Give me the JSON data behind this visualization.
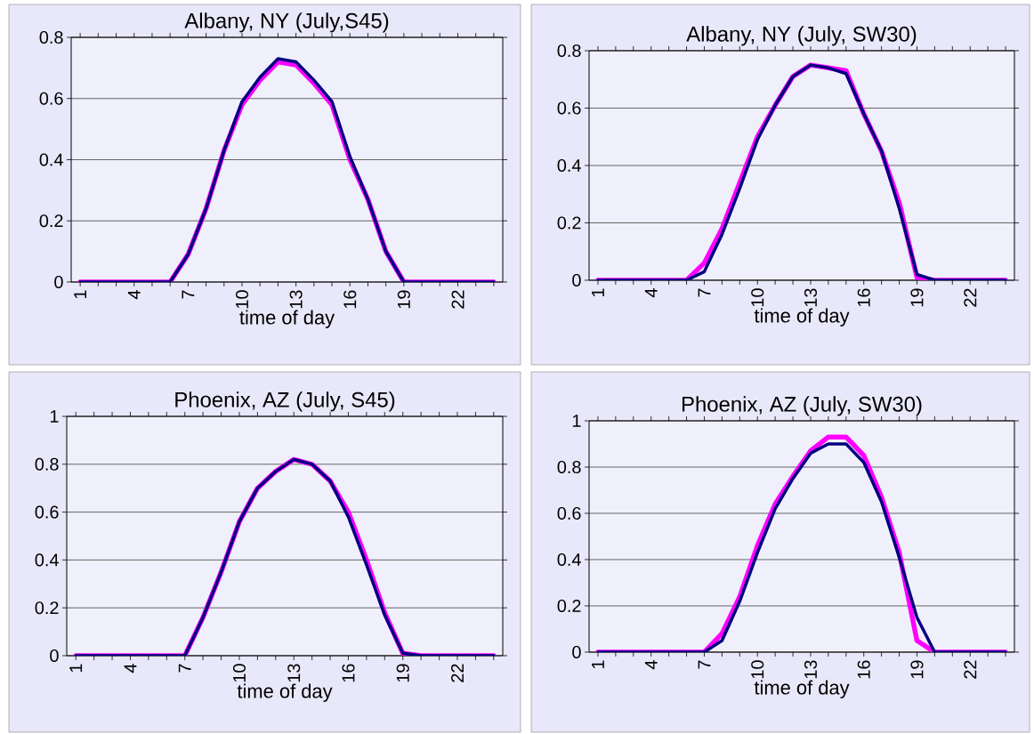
{
  "chart_data": [
    {
      "type": "line",
      "title": "Albany, NY (July,S45)",
      "xlabel": "time of day",
      "categories": [
        "1",
        null,
        null,
        "4",
        null,
        null,
        "7",
        null,
        null,
        "10",
        null,
        null,
        "13",
        null,
        null,
        "16",
        null,
        null,
        "19",
        null,
        null,
        "22",
        null,
        null
      ],
      "ylim": [
        0,
        0.8
      ],
      "yticks": [
        0,
        0.2,
        0.4,
        0.6,
        0.8
      ],
      "grid": "y",
      "marker": "none",
      "line_style": "solid",
      "series": [
        {
          "color": "#ff00ff",
          "values": [
            0,
            0,
            0,
            0,
            0,
            0,
            0.09,
            0.24,
            0.43,
            0.58,
            0.66,
            0.72,
            0.71,
            0.65,
            0.58,
            0.4,
            0.27,
            0.1,
            0,
            0,
            0,
            0,
            0,
            0
          ]
        },
        {
          "color": "#000080",
          "values": [
            0,
            0,
            0,
            0,
            0,
            0,
            0.09,
            0.24,
            0.43,
            0.59,
            0.67,
            0.73,
            0.72,
            0.66,
            0.59,
            0.41,
            0.27,
            0.1,
            0,
            0,
            0,
            0,
            0,
            0
          ]
        }
      ]
    },
    {
      "type": "line",
      "title": "Albany, NY (July, SW30)",
      "xlabel": "time of day",
      "categories": [
        "1",
        null,
        null,
        "4",
        null,
        null,
        "7",
        null,
        null,
        "10",
        null,
        null,
        "13",
        null,
        null,
        "16",
        null,
        null,
        "19",
        null,
        null,
        "22",
        null,
        null
      ],
      "ylim": [
        0,
        0.8
      ],
      "yticks": [
        0,
        0.2,
        0.4,
        0.6,
        0.8
      ],
      "grid": "y",
      "marker": "none",
      "line_style": "solid",
      "series": [
        {
          "color": "#ff00ff",
          "values": [
            0,
            0,
            0,
            0,
            0,
            0,
            0.06,
            0.18,
            0.34,
            0.5,
            0.61,
            0.71,
            0.75,
            0.74,
            0.73,
            0.58,
            0.45,
            0.27,
            0.01,
            0,
            0,
            0,
            0,
            0
          ]
        },
        {
          "color": "#000080",
          "values": [
            0,
            0,
            0,
            0,
            0,
            0,
            0.03,
            0.16,
            0.32,
            0.49,
            0.61,
            0.71,
            0.75,
            0.74,
            0.72,
            0.58,
            0.45,
            0.25,
            0.02,
            0,
            0,
            0,
            0,
            0
          ]
        }
      ]
    },
    {
      "type": "line",
      "title": "Phoenix, AZ (July, S45)",
      "xlabel": "time of day",
      "categories": [
        "1",
        null,
        null,
        "4",
        null,
        null,
        "7",
        null,
        null,
        "10",
        null,
        null,
        "13",
        null,
        null,
        "16",
        null,
        null,
        "19",
        null,
        null,
        "22",
        null,
        null
      ],
      "ylim": [
        0,
        1
      ],
      "yticks": [
        0,
        0.2,
        0.4,
        0.6,
        0.8,
        1
      ],
      "grid": "y",
      "marker": "none",
      "line_style": "solid",
      "series": [
        {
          "color": "#ff00ff",
          "values": [
            0,
            0,
            0,
            0,
            0,
            0,
            0,
            0.16,
            0.35,
            0.56,
            0.7,
            0.77,
            0.82,
            0.8,
            0.73,
            0.6,
            0.4,
            0.18,
            0.01,
            0,
            0,
            0,
            0,
            0
          ]
        },
        {
          "color": "#000080",
          "values": [
            0,
            0,
            0,
            0,
            0,
            0,
            0,
            0.16,
            0.35,
            0.56,
            0.7,
            0.77,
            0.82,
            0.8,
            0.73,
            0.58,
            0.38,
            0.17,
            0.01,
            0,
            0,
            0,
            0,
            0
          ]
        }
      ]
    },
    {
      "type": "line",
      "title": "Phoenix, AZ (July, SW30)",
      "xlabel": "time of day",
      "categories": [
        "1",
        null,
        null,
        "4",
        null,
        null,
        "7",
        null,
        null,
        "10",
        null,
        null,
        "13",
        null,
        null,
        "16",
        null,
        null,
        "19",
        null,
        null,
        "22",
        null,
        null
      ],
      "ylim": [
        0,
        1
      ],
      "yticks": [
        0,
        0.2,
        0.4,
        0.6,
        0.8,
        1
      ],
      "grid": "y",
      "marker": "none",
      "line_style": "solid",
      "series": [
        {
          "color": "#ff00ff",
          "values": [
            0,
            0,
            0,
            0,
            0,
            0,
            0,
            0.08,
            0.24,
            0.46,
            0.64,
            0.76,
            0.87,
            0.93,
            0.93,
            0.85,
            0.67,
            0.43,
            0.05,
            0,
            0,
            0,
            0,
            0
          ]
        },
        {
          "color": "#000080",
          "values": [
            0,
            0,
            0,
            0,
            0,
            0,
            0,
            0.05,
            0.22,
            0.43,
            0.62,
            0.75,
            0.86,
            0.9,
            0.9,
            0.82,
            0.65,
            0.41,
            0.15,
            0,
            0,
            0,
            0,
            0
          ]
        }
      ]
    }
  ]
}
